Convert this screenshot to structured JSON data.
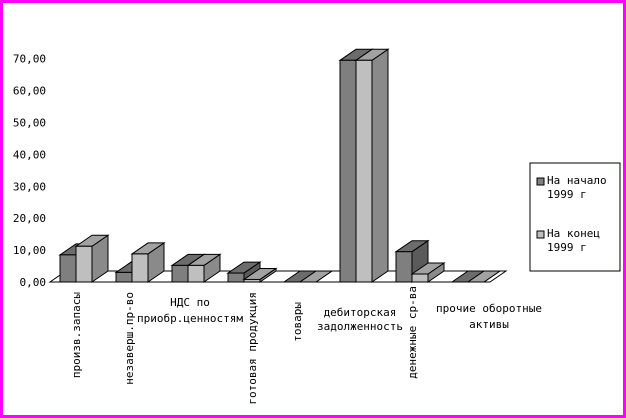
{
  "chart_data": {
    "type": "bar",
    "title": "",
    "xlabel": "",
    "ylabel": "",
    "ylim": [
      0,
      70
    ],
    "yticks": [
      "0,00",
      "10,00",
      "20,00",
      "30,00",
      "40,00",
      "50,00",
      "60,00",
      "70,00"
    ],
    "categories": [
      "произв.запасы",
      "незаверш.пр-во",
      "НДС по приобр.ценностям",
      "готовая продукция",
      "товары",
      "дебиторская задолженность",
      "денежные ср-ва",
      "прочие оборотные активы"
    ],
    "series": [
      {
        "name": "На начало 1999 г",
        "values": [
          8.5,
          3,
          5.2,
          2.8,
          0,
          69.5,
          9.5,
          0
        ]
      },
      {
        "name": "На конец 1999 г",
        "values": [
          11.2,
          8.8,
          5.2,
          0.8,
          0,
          69.5,
          2.5,
          0
        ]
      }
    ],
    "legend": "right",
    "grid": false,
    "colors": {
      "series1": "#7f7f7f",
      "series2": "#bfbfbf",
      "frame": "#ff00ff"
    }
  }
}
